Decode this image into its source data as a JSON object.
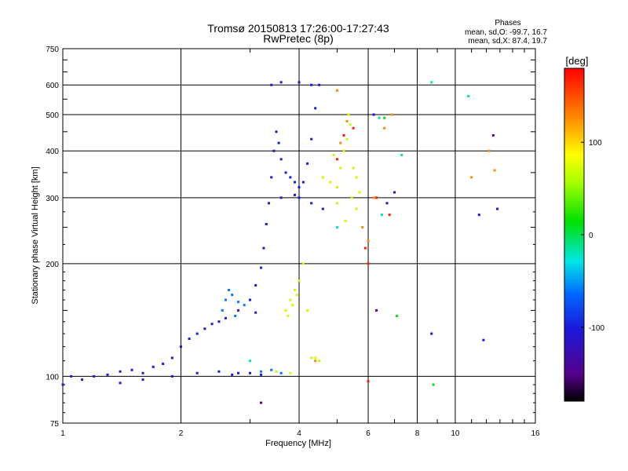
{
  "header": {
    "title_line1": "Tromsø 20150813 17:26:00-17:27:43",
    "title_line2": "RwPretec (8p)",
    "stats_title": "Phases",
    "stats_o": "mean, sd,O: -99.7, 16.7",
    "stats_x": "mean, sd,X:  87.4, 19.7"
  },
  "colorbar": {
    "label": "[deg]",
    "ticks": [
      "100",
      "0",
      "-100"
    ],
    "tick_values": [
      100,
      0,
      -100
    ],
    "range": [
      -180,
      180
    ]
  },
  "chart_data": {
    "type": "scatter",
    "title": "Tromsø 20150813 17:26:00-17:27:43",
    "subtitle": "RwPretec (8p)",
    "xlabel": "Frequency [MHz]",
    "ylabel": "Stationary phase Virtual Height [km]",
    "x_scale": "log2",
    "y_scale": "log",
    "xlim": [
      1,
      16
    ],
    "ylim": [
      75,
      750
    ],
    "x_ticks": [
      1,
      2,
      4,
      6,
      8,
      10,
      16
    ],
    "x_tick_labels": [
      "1",
      "2",
      "4",
      "6",
      "8",
      "10",
      "16"
    ],
    "y_ticks": [
      75,
      100,
      200,
      300,
      400,
      500,
      600,
      750
    ],
    "y_tick_labels": [
      "75",
      "100",
      "200",
      "300",
      "400",
      "500",
      "600",
      "750"
    ],
    "grid": true,
    "colorscale": "rainbow: phase in degrees",
    "point_groups": [
      {
        "phase": -100,
        "points": [
          [
            1.0,
            95
          ],
          [
            1.05,
            100
          ],
          [
            1.12,
            98
          ],
          [
            1.2,
            100
          ],
          [
            1.3,
            101
          ],
          [
            1.4,
            103
          ],
          [
            1.5,
            104
          ],
          [
            1.6,
            102
          ],
          [
            1.7,
            106
          ],
          [
            1.8,
            108
          ],
          [
            1.9,
            112
          ],
          [
            2.0,
            120
          ],
          [
            2.1,
            126
          ],
          [
            2.2,
            130
          ],
          [
            2.3,
            134
          ],
          [
            2.4,
            138
          ],
          [
            2.5,
            140
          ],
          [
            2.6,
            143
          ],
          [
            2.8,
            150
          ],
          [
            3.0,
            160
          ],
          [
            3.1,
            175
          ],
          [
            3.2,
            195
          ],
          [
            3.25,
            220
          ],
          [
            3.3,
            255
          ],
          [
            3.35,
            290
          ],
          [
            3.4,
            340
          ],
          [
            3.45,
            400
          ],
          [
            3.5,
            450
          ],
          [
            3.55,
            420
          ],
          [
            3.6,
            380
          ],
          [
            3.7,
            350
          ],
          [
            3.8,
            340
          ],
          [
            3.9,
            330
          ],
          [
            4.0,
            320
          ],
          [
            4.1,
            330
          ],
          [
            4.2,
            370
          ],
          [
            4.3,
            430
          ],
          [
            4.4,
            520
          ],
          [
            4.5,
            600
          ],
          [
            4.3,
            600
          ],
          [
            4.0,
            610
          ],
          [
            3.4,
            600
          ],
          [
            3.6,
            610
          ],
          [
            1.9,
            100
          ],
          [
            2.2,
            102
          ],
          [
            2.5,
            103
          ],
          [
            2.8,
            102
          ],
          [
            3.0,
            102
          ],
          [
            3.2,
            101
          ],
          [
            4.0,
            300
          ],
          [
            4.3,
            290
          ],
          [
            4.6,
            280
          ],
          [
            1.4,
            96
          ],
          [
            1.6,
            98
          ],
          [
            2.7,
            101
          ],
          [
            3.1,
            148
          ],
          [
            3.6,
            300
          ],
          [
            3.9,
            305
          ]
        ]
      },
      {
        "phase": -60,
        "points": [
          [
            2.6,
            160
          ],
          [
            2.7,
            165
          ],
          [
            2.8,
            158
          ],
          [
            2.55,
            150
          ],
          [
            2.65,
            170
          ],
          [
            2.75,
            145
          ],
          [
            2.9,
            155
          ],
          [
            3.2,
            103
          ],
          [
            3.4,
            104
          ],
          [
            3.6,
            102
          ]
        ]
      },
      {
        "phase": 70,
        "points": [
          [
            3.7,
            150
          ],
          [
            3.8,
            160
          ],
          [
            3.9,
            170
          ],
          [
            4.0,
            180
          ],
          [
            4.1,
            200
          ],
          [
            3.75,
            145
          ],
          [
            3.85,
            155
          ],
          [
            3.95,
            165
          ],
          [
            4.4,
            112
          ],
          [
            4.5,
            110
          ],
          [
            4.6,
            340
          ],
          [
            4.8,
            330
          ],
          [
            5.0,
            320
          ],
          [
            5.1,
            360
          ],
          [
            5.2,
            400
          ],
          [
            5.3,
            430
          ],
          [
            5.4,
            470
          ],
          [
            5.5,
            360
          ],
          [
            5.6,
            340
          ],
          [
            5.7,
            310
          ],
          [
            4.9,
            390
          ],
          [
            5.25,
            260
          ],
          [
            5.45,
            300
          ],
          [
            3.5,
            103
          ],
          [
            3.8,
            102
          ],
          [
            4.3,
            112
          ],
          [
            4.2,
            150
          ],
          [
            5.0,
            290
          ],
          [
            5.6,
            280
          ],
          [
            5.35,
            500
          ]
        ]
      },
      {
        "phase": 130,
        "points": [
          [
            5.1,
            420
          ],
          [
            5.3,
            480
          ],
          [
            6.2,
            300
          ],
          [
            6.6,
            460
          ],
          [
            6.9,
            500
          ],
          [
            11.0,
            340
          ],
          [
            12.6,
            355
          ],
          [
            12.2,
            400
          ],
          [
            5.8,
            250
          ],
          [
            6.0,
            230
          ],
          [
            4.4,
            110
          ],
          [
            5.0,
            580
          ]
        ]
      },
      {
        "phase": 170,
        "points": [
          [
            5.0,
            380
          ],
          [
            5.2,
            440
          ],
          [
            5.5,
            460
          ],
          [
            6.0,
            97
          ],
          [
            6.0,
            200
          ],
          [
            5.9,
            220
          ],
          [
            6.3,
            300
          ],
          [
            6.8,
            270
          ]
        ]
      },
      {
        "phase": -20,
        "points": [
          [
            6.5,
            270
          ],
          [
            7.3,
            390
          ],
          [
            8.7,
            610
          ],
          [
            10.8,
            560
          ],
          [
            6.4,
            490
          ],
          [
            3.0,
            110
          ],
          [
            5.0,
            250
          ]
        ]
      },
      {
        "phase": -110,
        "points": [
          [
            6.7,
            290
          ],
          [
            7.0,
            310
          ],
          [
            8.7,
            130
          ],
          [
            11.5,
            270
          ],
          [
            12.8,
            280
          ],
          [
            11.8,
            125
          ],
          [
            6.2,
            500
          ]
        ]
      },
      {
        "phase": 10,
        "points": [
          [
            8.8,
            95
          ],
          [
            7.1,
            145
          ],
          [
            6.6,
            490
          ]
        ]
      },
      {
        "phase": -150,
        "points": [
          [
            3.2,
            85
          ],
          [
            12.5,
            440
          ],
          [
            6.3,
            150
          ]
        ]
      }
    ]
  }
}
